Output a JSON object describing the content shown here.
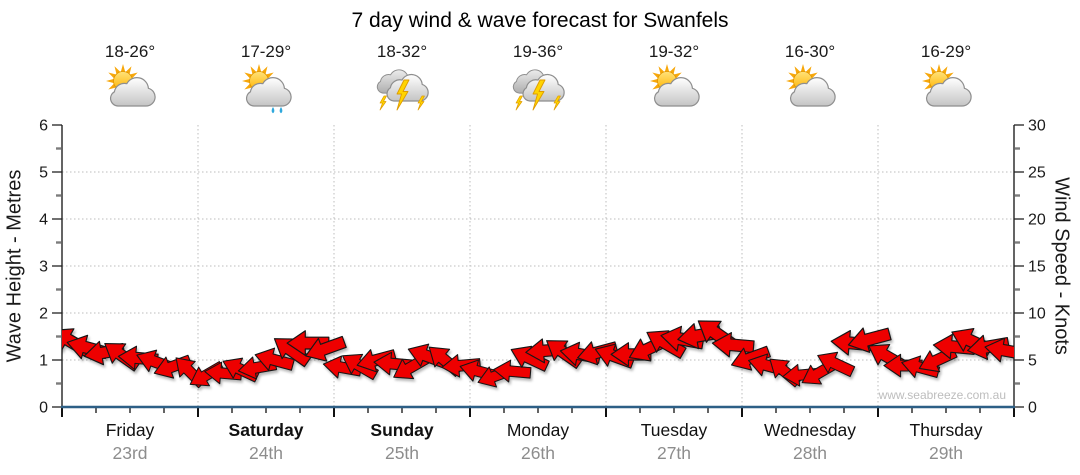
{
  "title": "7 day wind & wave forecast for Swanfels",
  "watermark": "www.seabreeze.com.au",
  "days": [
    {
      "name": "Friday",
      "date": "23rd",
      "temp": "18-26°",
      "icon": "sun-cloud",
      "bold": false
    },
    {
      "name": "Saturday",
      "date": "24th",
      "temp": "17-29°",
      "icon": "sun-cloud-rain",
      "bold": true
    },
    {
      "name": "Sunday",
      "date": "25th",
      "temp": "18-32°",
      "icon": "thunderstorm",
      "bold": true
    },
    {
      "name": "Monday",
      "date": "26th",
      "temp": "19-36°",
      "icon": "thunderstorm",
      "bold": false
    },
    {
      "name": "Tuesday",
      "date": "27th",
      "temp": "19-32°",
      "icon": "sun-cloud",
      "bold": false
    },
    {
      "name": "Wednesday",
      "date": "28th",
      "temp": "16-30°",
      "icon": "sun-cloud",
      "bold": false
    },
    {
      "name": "Thursday",
      "date": "29th",
      "temp": "16-29°",
      "icon": "sun-cloud",
      "bold": false
    }
  ],
  "chart_data": {
    "type": "wind-arrow-series",
    "title": "7 day wind & wave forecast for Swanfels",
    "x_categories": [
      "Friday 23rd",
      "Saturday 24th",
      "Sunday 25th",
      "Monday 26th",
      "Tuesday 27th",
      "Wednesday 28th",
      "Thursday 29th"
    ],
    "points_per_day": 8,
    "bottom_ticks_per_day": 4,
    "left_axis": {
      "label": "Wave Height - Metres",
      "min": 0,
      "max": 6,
      "major_tick": 1,
      "minor_tick": 0.5
    },
    "right_axis": {
      "label": "Wind Speed - Knots",
      "min": 0,
      "max": 30,
      "major_tick": 5,
      "minor_tick": 2.5
    },
    "grid": true,
    "wind_speed_knots": [
      7.0,
      6.3,
      5.8,
      5.5,
      5.2,
      4.8,
      4.3,
      3.8,
      3.4,
      3.6,
      4.0,
      4.2,
      5.0,
      6.0,
      6.8,
      6.2,
      4.2,
      4.4,
      5.0,
      4.6,
      4.2,
      5.4,
      5.0,
      4.4,
      3.8,
      3.3,
      3.8,
      5.2,
      6.0,
      5.8,
      5.6,
      5.8,
      5.4,
      5.6,
      6.2,
      6.8,
      7.2,
      7.6,
      7.8,
      6.6,
      5.2,
      4.4,
      3.8,
      3.4,
      3.6,
      4.6,
      6.8,
      7.2,
      5.4,
      4.4,
      4.2,
      5.0,
      6.4,
      7.0,
      6.4,
      6.0
    ],
    "arrow_rotation_deg": [
      210,
      195,
      170,
      215,
      185,
      200,
      160,
      225,
      150,
      185,
      205,
      170,
      195,
      215,
      180,
      160,
      190,
      210,
      165,
      185,
      150,
      200,
      220,
      175,
      195,
      160,
      185,
      205,
      175,
      215,
      190,
      165,
      200,
      180,
      155,
      210,
      190,
      170,
      215,
      185,
      160,
      195,
      220,
      175,
      150,
      205,
      185,
      165,
      210,
      180,
      195,
      155,
      185,
      205,
      170,
      190
    ],
    "arrow_color": "#ee0000",
    "axis_color": "#2d5f86",
    "gridline_color": "#bdbdbd"
  }
}
